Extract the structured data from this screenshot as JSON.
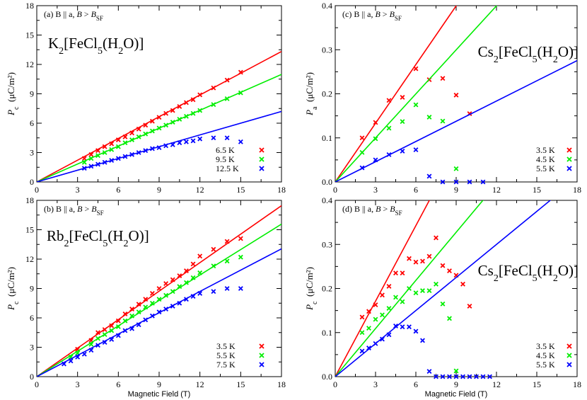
{
  "chart_data": [
    {
      "type": "scatter",
      "panel_label": "(a)",
      "condition": "B || a,  B > B_SF",
      "compound": "K2[FeCl5(H2O)]",
      "ylabel": "P_c (μC/m²)",
      "xlabel": "",
      "xlim": [
        0,
        18
      ],
      "ylim": [
        0,
        18
      ],
      "xticks": [
        0,
        3,
        6,
        9,
        12,
        15,
        18
      ],
      "yticks": [
        0,
        3,
        6,
        9,
        12,
        15,
        18
      ],
      "grid": false,
      "legend_position": "bottom-right",
      "series": [
        {
          "name": "6.5 K",
          "color": "#ff0000",
          "fit_slope": 0.74,
          "x": [
            3.5,
            4.0,
            4.5,
            5.0,
            5.5,
            6.0,
            6.5,
            7.0,
            7.5,
            8.0,
            8.5,
            9.0,
            9.5,
            10.0,
            10.5,
            11.0,
            11.5,
            12.0,
            13.0,
            14.0,
            15.0
          ],
          "y": [
            2.4,
            2.8,
            3.2,
            3.6,
            3.9,
            4.3,
            4.6,
            5.0,
            5.4,
            5.8,
            6.2,
            6.6,
            7.0,
            7.3,
            7.7,
            8.1,
            8.4,
            8.9,
            9.6,
            10.4,
            11.2
          ]
        },
        {
          "name": "9.5 K",
          "color": "#00ee00",
          "fit_slope": 0.61,
          "x": [
            3.5,
            4.0,
            4.5,
            5.0,
            5.5,
            6.0,
            6.5,
            7.0,
            7.5,
            8.0,
            8.5,
            9.0,
            9.5,
            10.0,
            10.5,
            11.0,
            11.5,
            12.0,
            13.0,
            14.0,
            15.0
          ],
          "y": [
            2.0,
            2.4,
            2.7,
            3.0,
            3.3,
            3.6,
            4.0,
            4.3,
            4.6,
            4.9,
            5.2,
            5.5,
            5.8,
            6.1,
            6.4,
            6.7,
            7.0,
            7.3,
            7.9,
            8.5,
            9.1
          ]
        },
        {
          "name": "12.5 K",
          "color": "#0000ff",
          "fit_slope": 0.4,
          "x": [
            3.5,
            4.0,
            4.5,
            5.0,
            5.5,
            6.0,
            6.5,
            7.0,
            7.5,
            8.0,
            8.5,
            9.0,
            9.5,
            10.0,
            10.5,
            11.0,
            11.5,
            12.0,
            13.0,
            14.0,
            15.0
          ],
          "y": [
            1.4,
            1.6,
            1.8,
            2.0,
            2.2,
            2.4,
            2.6,
            2.8,
            3.0,
            3.2,
            3.4,
            3.5,
            3.7,
            3.8,
            4.0,
            4.1,
            4.2,
            4.4,
            4.5,
            4.5,
            4.1
          ]
        }
      ]
    },
    {
      "type": "scatter",
      "panel_label": "(c)",
      "condition": "B || a,  B > B_SF",
      "compound": "Cs2[FeCl5(H2O)]",
      "ylabel": "P_a (μC/m²)",
      "xlabel": "",
      "xlim": [
        0,
        18
      ],
      "ylim": [
        0,
        0.4
      ],
      "xticks": [
        0,
        3,
        6,
        9,
        12,
        15,
        18
      ],
      "yticks": [
        0,
        0.1,
        0.2,
        0.3,
        0.4
      ],
      "grid": false,
      "legend_position": "bottom-right",
      "series": [
        {
          "name": "3.5 K",
          "color": "#ff0000",
          "fit_slope": 0.0444,
          "x": [
            2,
            3,
            4,
            5,
            6,
            7,
            8,
            9,
            10
          ],
          "y": [
            0.1,
            0.135,
            0.185,
            0.192,
            0.257,
            0.232,
            0.235,
            0.197,
            0.155
          ]
        },
        {
          "name": "4.5 K",
          "color": "#00ee00",
          "fit_slope": 0.0333,
          "x": [
            2,
            3,
            4,
            5,
            6,
            7,
            8,
            9
          ],
          "y": [
            0.067,
            0.098,
            0.122,
            0.137,
            0.175,
            0.147,
            0.138,
            0.03
          ]
        },
        {
          "name": "5.5 K",
          "color": "#0000ff",
          "fit_slope": 0.0153,
          "x": [
            2,
            3,
            4,
            5,
            6,
            7,
            8,
            9,
            10,
            11
          ],
          "y": [
            0.032,
            0.05,
            0.062,
            0.07,
            0.073,
            0.013,
            0.0,
            0.0,
            0.0,
            0.0
          ]
        }
      ]
    },
    {
      "type": "scatter",
      "panel_label": "(b)",
      "condition": "B || a,  B > B_SF",
      "compound": "Rb2[FeCl5(H2O)]",
      "ylabel": "P_c (μC/m²)",
      "xlabel": "Magnetic Field (T)",
      "xlim": [
        0,
        18
      ],
      "ylim": [
        0,
        18
      ],
      "xticks": [
        0,
        3,
        6,
        9,
        12,
        15,
        18
      ],
      "yticks": [
        0,
        3,
        6,
        9,
        12,
        15,
        18
      ],
      "grid": false,
      "legend_position": "bottom-right",
      "series": [
        {
          "name": "3.5 K",
          "color": "#ff0000",
          "fit_slope": 0.97,
          "x": [
            3,
            4,
            4.5,
            5,
            5.5,
            6,
            6.5,
            7,
            7.5,
            8,
            8.5,
            9,
            9.5,
            10,
            10.5,
            11,
            11.5,
            12,
            13,
            14,
            15
          ],
          "y": [
            2.8,
            3.7,
            4.5,
            4.8,
            5.2,
            5.7,
            6.4,
            6.9,
            7.4,
            7.9,
            8.5,
            9.0,
            9.5,
            9.9,
            10.3,
            10.8,
            11.5,
            12.3,
            13.0,
            13.8,
            14.1
          ]
        },
        {
          "name": "5.5 K",
          "color": "#00ee00",
          "fit_slope": 0.865,
          "x": [
            2.5,
            3,
            4,
            4.5,
            5,
            5.5,
            6,
            6.5,
            7,
            7.5,
            8,
            8.5,
            9,
            9.5,
            10,
            10.5,
            11,
            11.5,
            12,
            13,
            14,
            15
          ],
          "y": [
            2.0,
            2.4,
            3.3,
            3.9,
            4.3,
            4.7,
            5.1,
            5.7,
            6.2,
            6.6,
            7.1,
            7.5,
            7.9,
            8.3,
            8.7,
            9.2,
            9.6,
            10.1,
            10.6,
            11.3,
            11.8,
            12.2
          ]
        },
        {
          "name": "7.5 K",
          "color": "#0000ff",
          "fit_slope": 0.725,
          "x": [
            2,
            2.5,
            3,
            3.5,
            4,
            4.5,
            5,
            5.5,
            6,
            6.5,
            7,
            7.5,
            8,
            8.5,
            9,
            9.5,
            10,
            10.5,
            11,
            11.5,
            12,
            13,
            14,
            15
          ],
          "y": [
            1.3,
            1.6,
            2.0,
            2.3,
            2.7,
            3.2,
            3.5,
            3.8,
            4.2,
            4.7,
            4.9,
            5.3,
            5.8,
            6.2,
            6.6,
            6.9,
            7.2,
            7.5,
            7.9,
            8.2,
            8.5,
            8.7,
            9.0,
            9.0
          ]
        }
      ]
    },
    {
      "type": "scatter",
      "panel_label": "(d)",
      "condition": "B || a,  B > B_SF",
      "compound": "Cs2[FeCl5(H2O)]",
      "ylabel": "P_c (μC/m²)",
      "xlabel": "Magnetic Field (T)",
      "xlim": [
        0,
        18
      ],
      "ylim": [
        0,
        0.4
      ],
      "xticks": [
        0,
        3,
        6,
        9,
        12,
        15,
        18
      ],
      "yticks": [
        0,
        0.1,
        0.2,
        0.3,
        0.4
      ],
      "grid": false,
      "legend_position": "bottom-right",
      "series": [
        {
          "name": "3.5 K",
          "color": "#ff0000",
          "fit_slope": 0.0571,
          "x": [
            2,
            2.5,
            3,
            3.5,
            4,
            4.5,
            5,
            5.5,
            6,
            6.5,
            7,
            7.5,
            8,
            8.5,
            9,
            9.5,
            10
          ],
          "y": [
            0.135,
            0.148,
            0.163,
            0.185,
            0.205,
            0.235,
            0.235,
            0.268,
            0.26,
            0.262,
            0.273,
            0.315,
            0.252,
            0.24,
            0.23,
            0.21,
            0.16
          ]
        },
        {
          "name": "4.5 K",
          "color": "#00ee00",
          "fit_slope": 0.0364,
          "x": [
            2,
            2.5,
            3,
            3.5,
            4,
            4.5,
            5,
            5.5,
            6,
            6.5,
            7,
            7.5,
            8,
            8.5,
            9
          ],
          "y": [
            0.1,
            0.11,
            0.13,
            0.14,
            0.155,
            0.18,
            0.17,
            0.2,
            0.19,
            0.195,
            0.195,
            0.21,
            0.165,
            0.132,
            0.013
          ]
        },
        {
          "name": "5.5 K",
          "color": "#0000ff",
          "fit_slope": 0.025,
          "x": [
            2,
            2.5,
            3,
            3.5,
            4,
            4.5,
            5,
            5.5,
            6,
            6.5,
            7,
            7.5,
            8,
            8.5,
            9,
            9.5,
            10,
            10.5,
            11,
            11.5
          ],
          "y": [
            0.058,
            0.065,
            0.075,
            0.085,
            0.095,
            0.115,
            0.113,
            0.113,
            0.103,
            0.082,
            0.012,
            0.0,
            0.0,
            0.0,
            0.0,
            0.0,
            0.0,
            0.0,
            0.0,
            0.0
          ]
        }
      ]
    }
  ]
}
